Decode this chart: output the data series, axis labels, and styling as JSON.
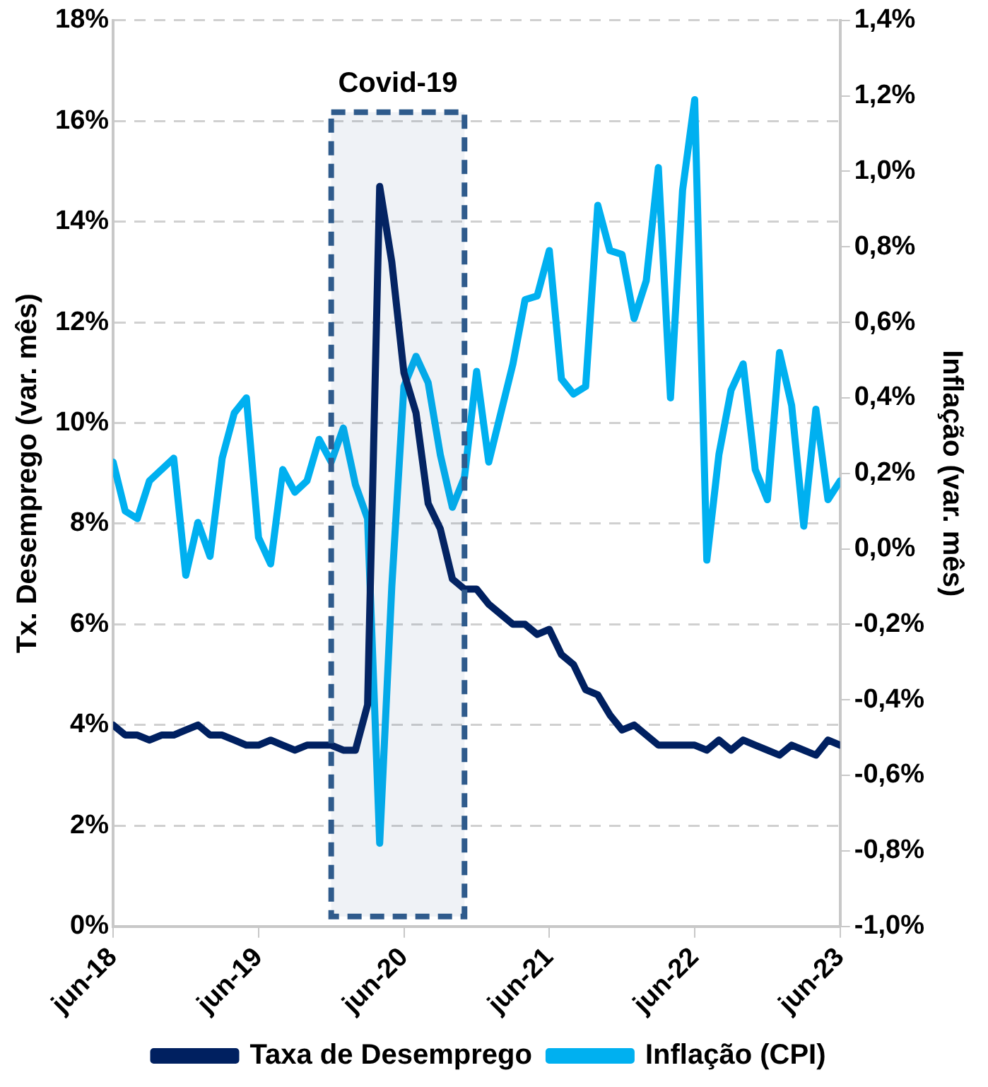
{
  "chart_data": {
    "type": "line",
    "ylabel": "Tx. Desemprego (var. mês)",
    "y2label": "Inflação (var. mês)",
    "x": [
      "2018-06",
      "2018-07",
      "2018-08",
      "2018-09",
      "2018-10",
      "2018-11",
      "2018-12",
      "2019-01",
      "2019-02",
      "2019-03",
      "2019-04",
      "2019-05",
      "2019-06",
      "2019-07",
      "2019-08",
      "2019-09",
      "2019-10",
      "2019-11",
      "2019-12",
      "2020-01",
      "2020-02",
      "2020-03",
      "2020-04",
      "2020-05",
      "2020-06",
      "2020-07",
      "2020-08",
      "2020-09",
      "2020-10",
      "2020-11",
      "2020-12",
      "2021-01",
      "2021-02",
      "2021-03",
      "2021-04",
      "2021-05",
      "2021-06",
      "2021-07",
      "2021-08",
      "2021-09",
      "2021-10",
      "2021-11",
      "2021-12",
      "2022-01",
      "2022-02",
      "2022-03",
      "2022-04",
      "2022-05",
      "2022-06",
      "2022-07",
      "2022-08",
      "2022-09",
      "2022-10",
      "2022-11",
      "2022-12",
      "2023-01",
      "2023-02",
      "2023-03",
      "2023-04",
      "2023-05",
      "2023-06"
    ],
    "series": [
      {
        "name": "Taxa de Desemprego",
        "color": "#002060",
        "values": [
          4.0,
          3.8,
          3.8,
          3.7,
          3.8,
          3.8,
          3.9,
          4.0,
          3.8,
          3.8,
          3.7,
          3.6,
          3.6,
          3.7,
          3.6,
          3.5,
          3.6,
          3.6,
          3.6,
          3.5,
          3.5,
          4.4,
          14.7,
          13.2,
          11.0,
          10.2,
          8.4,
          7.9,
          6.9,
          6.7,
          6.7,
          6.4,
          6.2,
          6.0,
          6.0,
          5.8,
          5.9,
          5.4,
          5.2,
          4.7,
          4.6,
          4.2,
          3.9,
          4.0,
          3.8,
          3.6,
          3.6,
          3.6,
          3.6,
          3.5,
          3.7,
          3.5,
          3.7,
          3.6,
          3.5,
          3.4,
          3.6,
          3.5,
          3.4,
          3.7,
          3.6
        ]
      },
      {
        "name": "Inflação (CPI)",
        "color": "#00b0f0",
        "axis": "y2",
        "values": [
          0.23,
          0.1,
          0.08,
          0.18,
          0.21,
          0.24,
          -0.07,
          0.07,
          -0.02,
          0.24,
          0.36,
          0.4,
          0.03,
          -0.04,
          0.21,
          0.15,
          0.18,
          0.29,
          0.23,
          0.32,
          0.17,
          0.08,
          -0.78,
          -0.1,
          0.43,
          0.51,
          0.44,
          0.25,
          0.11,
          0.19,
          0.47,
          0.23,
          0.36,
          0.49,
          0.66,
          0.67,
          0.79,
          0.45,
          0.41,
          0.43,
          0.91,
          0.79,
          0.78,
          0.61,
          0.71,
          1.01,
          0.4,
          0.95,
          1.19,
          -0.03,
          0.25,
          0.42,
          0.49,
          0.21,
          0.13,
          0.52,
          0.38,
          0.06,
          0.37,
          0.13,
          0.18
        ]
      }
    ],
    "xlim": [
      "2018-06",
      "2023-06"
    ],
    "xticks": [
      {
        "value": "2018-06",
        "label": "jun-18"
      },
      {
        "value": "2019-06",
        "label": "jun-19"
      },
      {
        "value": "2020-06",
        "label": "jun-20"
      },
      {
        "value": "2021-06",
        "label": "jun-21"
      },
      {
        "value": "2022-06",
        "label": "jun-22"
      },
      {
        "value": "2023-06",
        "label": "jun-23"
      }
    ],
    "ylim": [
      0,
      18
    ],
    "yticks": [
      {
        "value": 0,
        "label": "0%"
      },
      {
        "value": 2,
        "label": "2%"
      },
      {
        "value": 4,
        "label": "4%"
      },
      {
        "value": 6,
        "label": "6%"
      },
      {
        "value": 8,
        "label": "8%"
      },
      {
        "value": 10,
        "label": "10%"
      },
      {
        "value": 12,
        "label": "12%"
      },
      {
        "value": 14,
        "label": "14%"
      },
      {
        "value": 16,
        "label": "16%"
      },
      {
        "value": 18,
        "label": "18%"
      }
    ],
    "y2lim": [
      -1.0,
      1.4
    ],
    "y2ticks": [
      {
        "value": -1.0,
        "label": "-1,0%"
      },
      {
        "value": -0.8,
        "label": "-0,8%"
      },
      {
        "value": -0.6,
        "label": "-0,6%"
      },
      {
        "value": -0.4,
        "label": "-0,4%"
      },
      {
        "value": -0.2,
        "label": "-0,2%"
      },
      {
        "value": 0,
        "label": "0,0%"
      },
      {
        "value": 0.2,
        "label": "0,2%"
      },
      {
        "value": 0.4,
        "label": "0,4%"
      },
      {
        "value": 0.6,
        "label": "0,6%"
      },
      {
        "value": 0.8,
        "label": "0,8%"
      },
      {
        "value": 1.0,
        "label": "1,0%"
      },
      {
        "value": 1.2,
        "label": "1,2%"
      },
      {
        "value": 1.4,
        "label": "1,4%"
      }
    ],
    "bands": [
      {
        "axis": "x",
        "from": "2019-12",
        "to": "2020-11",
        "label": "Covid-19",
        "color": "#2f5b8c"
      }
    ],
    "grid": "y",
    "legend": "bottom",
    "marker": "none",
    "line_style": "solid"
  }
}
